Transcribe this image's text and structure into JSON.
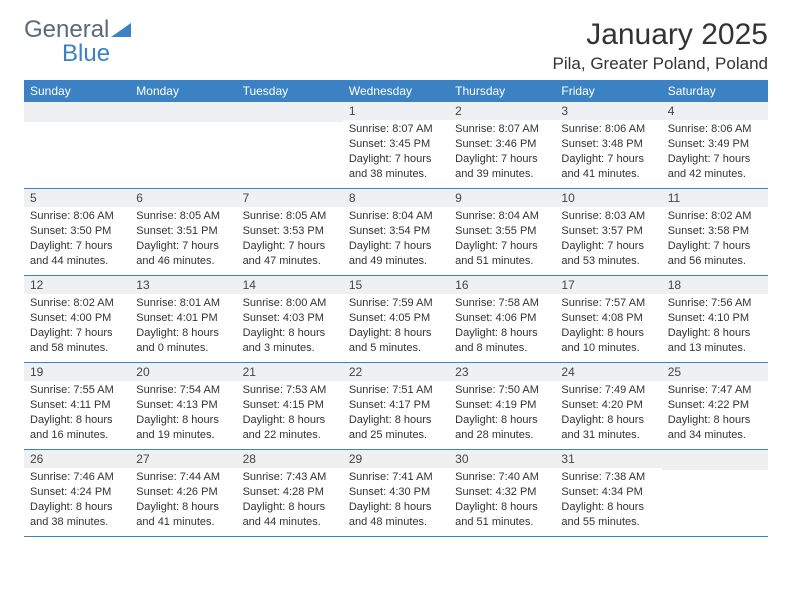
{
  "logo": {
    "text1": "General",
    "text2": "Blue"
  },
  "title": {
    "month_year": "January 2025",
    "location": "Pila, Greater Poland, Poland"
  },
  "colors": {
    "header_bg": "#3b82c4",
    "header_text": "#ffffff",
    "daynum_bg": "#eef0f2",
    "border": "#3b82c4",
    "body_text": "#333333",
    "logo_gray": "#5a6a7a",
    "logo_blue": "#3b82c4"
  },
  "day_names": [
    "Sunday",
    "Monday",
    "Tuesday",
    "Wednesday",
    "Thursday",
    "Friday",
    "Saturday"
  ],
  "weeks": [
    [
      {
        "n": "",
        "sr": "",
        "ss": "",
        "dl": ""
      },
      {
        "n": "",
        "sr": "",
        "ss": "",
        "dl": ""
      },
      {
        "n": "",
        "sr": "",
        "ss": "",
        "dl": ""
      },
      {
        "n": "1",
        "sr": "Sunrise: 8:07 AM",
        "ss": "Sunset: 3:45 PM",
        "dl": "Daylight: 7 hours and 38 minutes."
      },
      {
        "n": "2",
        "sr": "Sunrise: 8:07 AM",
        "ss": "Sunset: 3:46 PM",
        "dl": "Daylight: 7 hours and 39 minutes."
      },
      {
        "n": "3",
        "sr": "Sunrise: 8:06 AM",
        "ss": "Sunset: 3:48 PM",
        "dl": "Daylight: 7 hours and 41 minutes."
      },
      {
        "n": "4",
        "sr": "Sunrise: 8:06 AM",
        "ss": "Sunset: 3:49 PM",
        "dl": "Daylight: 7 hours and 42 minutes."
      }
    ],
    [
      {
        "n": "5",
        "sr": "Sunrise: 8:06 AM",
        "ss": "Sunset: 3:50 PM",
        "dl": "Daylight: 7 hours and 44 minutes."
      },
      {
        "n": "6",
        "sr": "Sunrise: 8:05 AM",
        "ss": "Sunset: 3:51 PM",
        "dl": "Daylight: 7 hours and 46 minutes."
      },
      {
        "n": "7",
        "sr": "Sunrise: 8:05 AM",
        "ss": "Sunset: 3:53 PM",
        "dl": "Daylight: 7 hours and 47 minutes."
      },
      {
        "n": "8",
        "sr": "Sunrise: 8:04 AM",
        "ss": "Sunset: 3:54 PM",
        "dl": "Daylight: 7 hours and 49 minutes."
      },
      {
        "n": "9",
        "sr": "Sunrise: 8:04 AM",
        "ss": "Sunset: 3:55 PM",
        "dl": "Daylight: 7 hours and 51 minutes."
      },
      {
        "n": "10",
        "sr": "Sunrise: 8:03 AM",
        "ss": "Sunset: 3:57 PM",
        "dl": "Daylight: 7 hours and 53 minutes."
      },
      {
        "n": "11",
        "sr": "Sunrise: 8:02 AM",
        "ss": "Sunset: 3:58 PM",
        "dl": "Daylight: 7 hours and 56 minutes."
      }
    ],
    [
      {
        "n": "12",
        "sr": "Sunrise: 8:02 AM",
        "ss": "Sunset: 4:00 PM",
        "dl": "Daylight: 7 hours and 58 minutes."
      },
      {
        "n": "13",
        "sr": "Sunrise: 8:01 AM",
        "ss": "Sunset: 4:01 PM",
        "dl": "Daylight: 8 hours and 0 minutes."
      },
      {
        "n": "14",
        "sr": "Sunrise: 8:00 AM",
        "ss": "Sunset: 4:03 PM",
        "dl": "Daylight: 8 hours and 3 minutes."
      },
      {
        "n": "15",
        "sr": "Sunrise: 7:59 AM",
        "ss": "Sunset: 4:05 PM",
        "dl": "Daylight: 8 hours and 5 minutes."
      },
      {
        "n": "16",
        "sr": "Sunrise: 7:58 AM",
        "ss": "Sunset: 4:06 PM",
        "dl": "Daylight: 8 hours and 8 minutes."
      },
      {
        "n": "17",
        "sr": "Sunrise: 7:57 AM",
        "ss": "Sunset: 4:08 PM",
        "dl": "Daylight: 8 hours and 10 minutes."
      },
      {
        "n": "18",
        "sr": "Sunrise: 7:56 AM",
        "ss": "Sunset: 4:10 PM",
        "dl": "Daylight: 8 hours and 13 minutes."
      }
    ],
    [
      {
        "n": "19",
        "sr": "Sunrise: 7:55 AM",
        "ss": "Sunset: 4:11 PM",
        "dl": "Daylight: 8 hours and 16 minutes."
      },
      {
        "n": "20",
        "sr": "Sunrise: 7:54 AM",
        "ss": "Sunset: 4:13 PM",
        "dl": "Daylight: 8 hours and 19 minutes."
      },
      {
        "n": "21",
        "sr": "Sunrise: 7:53 AM",
        "ss": "Sunset: 4:15 PM",
        "dl": "Daylight: 8 hours and 22 minutes."
      },
      {
        "n": "22",
        "sr": "Sunrise: 7:51 AM",
        "ss": "Sunset: 4:17 PM",
        "dl": "Daylight: 8 hours and 25 minutes."
      },
      {
        "n": "23",
        "sr": "Sunrise: 7:50 AM",
        "ss": "Sunset: 4:19 PM",
        "dl": "Daylight: 8 hours and 28 minutes."
      },
      {
        "n": "24",
        "sr": "Sunrise: 7:49 AM",
        "ss": "Sunset: 4:20 PM",
        "dl": "Daylight: 8 hours and 31 minutes."
      },
      {
        "n": "25",
        "sr": "Sunrise: 7:47 AM",
        "ss": "Sunset: 4:22 PM",
        "dl": "Daylight: 8 hours and 34 minutes."
      }
    ],
    [
      {
        "n": "26",
        "sr": "Sunrise: 7:46 AM",
        "ss": "Sunset: 4:24 PM",
        "dl": "Daylight: 8 hours and 38 minutes."
      },
      {
        "n": "27",
        "sr": "Sunrise: 7:44 AM",
        "ss": "Sunset: 4:26 PM",
        "dl": "Daylight: 8 hours and 41 minutes."
      },
      {
        "n": "28",
        "sr": "Sunrise: 7:43 AM",
        "ss": "Sunset: 4:28 PM",
        "dl": "Daylight: 8 hours and 44 minutes."
      },
      {
        "n": "29",
        "sr": "Sunrise: 7:41 AM",
        "ss": "Sunset: 4:30 PM",
        "dl": "Daylight: 8 hours and 48 minutes."
      },
      {
        "n": "30",
        "sr": "Sunrise: 7:40 AM",
        "ss": "Sunset: 4:32 PM",
        "dl": "Daylight: 8 hours and 51 minutes."
      },
      {
        "n": "31",
        "sr": "Sunrise: 7:38 AM",
        "ss": "Sunset: 4:34 PM",
        "dl": "Daylight: 8 hours and 55 minutes."
      },
      {
        "n": "",
        "sr": "",
        "ss": "",
        "dl": ""
      }
    ]
  ]
}
